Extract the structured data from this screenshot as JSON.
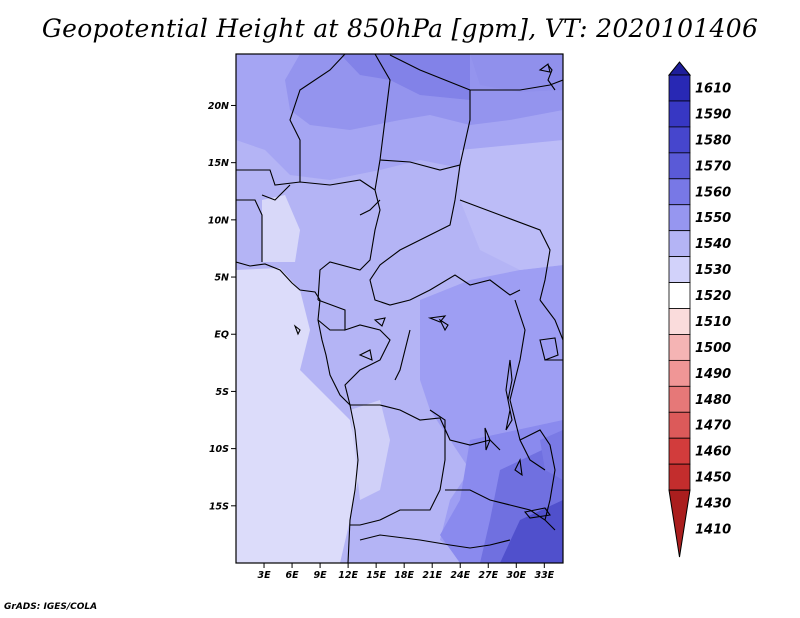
{
  "title": "Geopotential Height at 850hPa [gpm], VT: 2020101406",
  "credit": "GrADS: IGES/COLA",
  "map": {
    "lon_range": [
      0,
      35
    ],
    "lat_range": [
      -20,
      24.5
    ],
    "lon_ticks": [
      "3E",
      "6E",
      "9E",
      "12E",
      "15E",
      "18E",
      "21E",
      "24E",
      "27E",
      "30E",
      "33E"
    ],
    "lat_ticks": [
      "20N",
      "15N",
      "10N",
      "5N",
      "EQ",
      "5S",
      "10S",
      "15S"
    ],
    "fill_colors": {
      "ocean_low": "#dcdcfa",
      "mid": "#bebefa",
      "high": "#a0a0f5",
      "higher": "#8c8cf0",
      "highest": "#6464dc",
      "top": "#4646c8"
    }
  },
  "colorbar": {
    "levels": [
      "1610",
      "1590",
      "1580",
      "1570",
      "1560",
      "1550",
      "1540",
      "1530",
      "1520",
      "1510",
      "1500",
      "1490",
      "1480",
      "1470",
      "1460",
      "1450",
      "1430",
      "1410"
    ],
    "colors": [
      "#1e1e9b",
      "#2828b4",
      "#3737c3",
      "#4646cd",
      "#5a5ad7",
      "#7878e6",
      "#9696f0",
      "#b4b4f5",
      "#d2d2fa",
      "#ffffff",
      "#fadcdc",
      "#f5b4b4",
      "#f09696",
      "#e67878",
      "#dc5a5a",
      "#d23c3c",
      "#c32d2d",
      "#aa1e1e"
    ]
  }
}
